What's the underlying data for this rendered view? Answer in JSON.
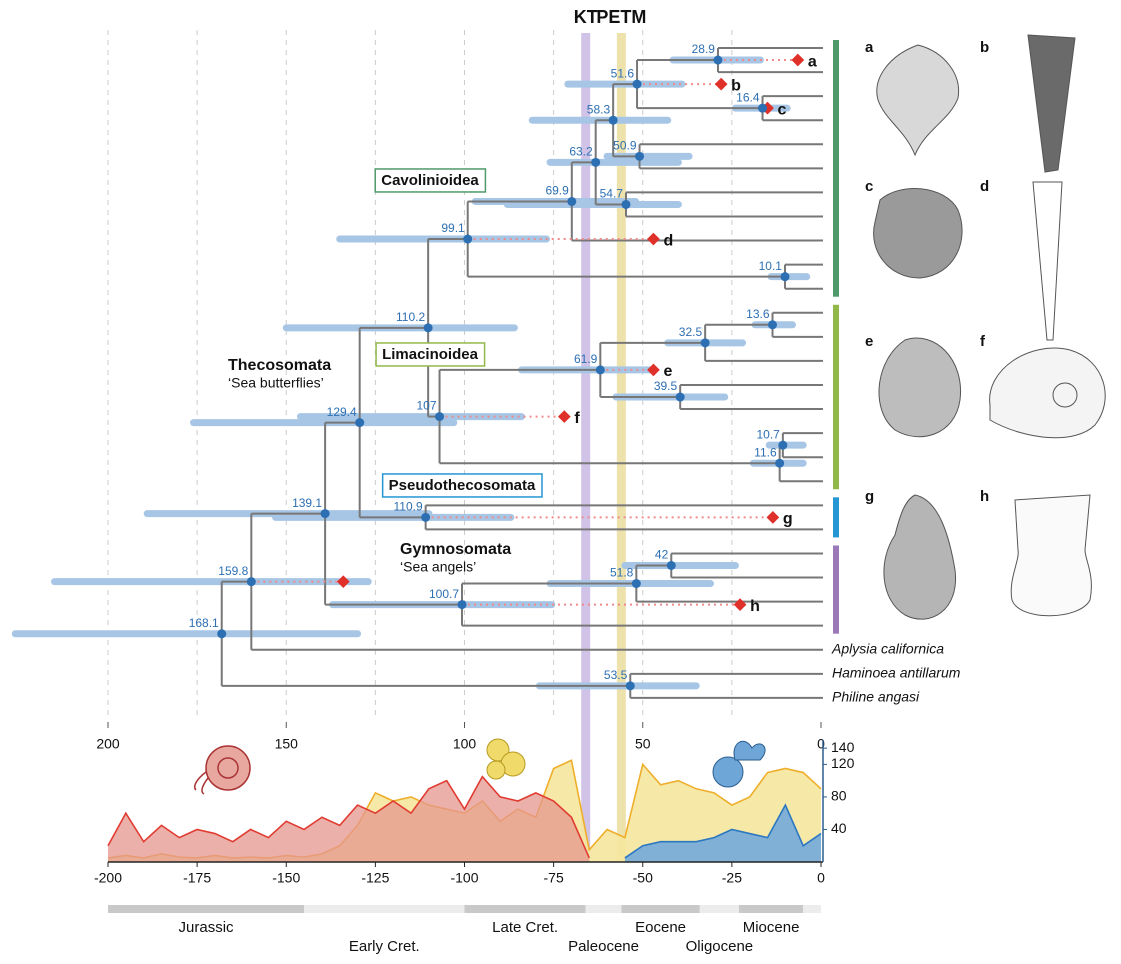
{
  "chart_data": [
    {
      "type": "tree",
      "xlim": [
        200,
        0
      ],
      "xticks": [
        200,
        150,
        100,
        50,
        0
      ],
      "grid_lines": [
        200,
        175,
        150,
        125,
        100,
        75,
        50,
        25
      ],
      "events": [
        {
          "label": "KT",
          "age": 66,
          "color": "#c9b8e3"
        },
        {
          "label": "PETM",
          "age": 56,
          "color": "#eadc9e"
        }
      ],
      "tree": {
        "age": 168.1,
        "ci": [
          226,
          130
        ],
        "children": [
          {
            "age": 159.8,
            "ci": [
              215,
              127
            ],
            "fossil": {
              "age": 134
            },
            "children": [
              {
                "age": 139.1,
                "ci": [
                  189,
                  110
                ],
                "children": [
                  {
                    "age": 129.4,
                    "ci": [
                      176,
                      103
                    ],
                    "children": [
                      {
                        "age": 110.2,
                        "ci": [
                          150,
                          86
                        ],
                        "children": [
                          {
                            "age": 99.1,
                            "ci": [
                              135,
                              77
                            ],
                            "fossil": {
                              "label": "d",
                              "age": 47
                            },
                            "children": [
                              {
                                "age": 69.9,
                                "ci": [
                                  97,
                                  52
                                ],
                                "children": [
                                  {
                                    "age": 63.2,
                                    "ci": [
                                      76,
                                      40
                                    ],
                                    "children": [
                                      {
                                        "age": 58.3,
                                        "ci": [
                                          81,
                                          43
                                        ],
                                        "children": [
                                          {
                                            "age": 51.6,
                                            "ci": [
                                              71,
                                              39
                                            ],
                                            "fossil": {
                                              "label": "b",
                                              "age": 28
                                            },
                                            "children": [
                                              {
                                                "age": 28.9,
                                                "ci": [
                                                  41.5,
                                                  17
                                                ],
                                                "fossil": {
                                                  "label": "a",
                                                  "age": 6.5
                                                },
                                                "children": [
                                                  null,
                                                  null
                                                ]
                                              },
                                              {
                                                "age": 16.4,
                                                "ci": [
                                                  24,
                                                  9.5
                                                ],
                                                "fossil": {
                                                  "label": "c",
                                                  "age": 15
                                                },
                                                "children": [
                                                  null,
                                                  null
                                                ]
                                              }
                                            ]
                                          },
                                          {
                                            "age": 50.9,
                                            "ci": [
                                              60,
                                              37
                                            ],
                                            "children": [
                                              null,
                                              null
                                            ]
                                          }
                                        ]
                                      },
                                      {
                                        "age": 54.7,
                                        "ci": [
                                          88,
                                          40
                                        ],
                                        "children": [
                                          null,
                                          null
                                        ]
                                      }
                                    ]
                                  },
                                  null
                                ]
                              },
                              {
                                "age": 10.1,
                                "ci": [
                                  14,
                                  4
                                ],
                                "children": [
                                  null,
                                  null
                                ]
                              }
                            ]
                          },
                          {
                            "age": 107,
                            "ci": [
                              146,
                              84
                            ],
                            "fossil": {
                              "label": "f",
                              "age": 72
                            },
                            "children": [
                              {
                                "age": 61.9,
                                "ci": [
                                  84,
                                  47
                                ],
                                "fossil": {
                                  "label": "e",
                                  "age": 47
                                },
                                "children": [
                                  {
                                    "age": 32.5,
                                    "ci": [
                                      43,
                                      22
                                    ],
                                    "children": [
                                      {
                                        "age": 13.6,
                                        "ci": [
                                          18.5,
                                          8
                                        ],
                                        "children": [
                                          null,
                                          null
                                        ]
                                      },
                                      null
                                    ]
                                  },
                                  {
                                    "age": 39.5,
                                    "ci": [
                                      57.5,
                                      27
                                    ],
                                    "children": [
                                      null,
                                      null
                                    ]
                                  }
                                ]
                              },
                              {
                                "age": 11.6,
                                "ci": [
                                  19,
                                  5
                                ],
                                "children": [
                                  {
                                    "age": 10.7,
                                    "ci": [
                                      14.5,
                                      5
                                    ],
                                    "children": [
                                      null,
                                      null
                                    ]
                                  },
                                  null
                                ]
                              }
                            ]
                          }
                        ]
                      },
                      {
                        "age": 110.9,
                        "ci": [
                          153,
                          87
                        ],
                        "fossil": {
                          "label": "g",
                          "age": 13.5
                        },
                        "children": [
                          null,
                          null
                        ]
                      }
                    ]
                  },
                  {
                    "age": 100.7,
                    "ci": [
                      137,
                      75.5
                    ],
                    "fossil": {
                      "label": "h",
                      "age": 22.7
                    },
                    "children": [
                      {
                        "age": 51.8,
                        "ci": [
                          76,
                          31
                        ],
                        "children": [
                          {
                            "age": 42,
                            "ci": [
                              55,
                              24
                            ],
                            "children": [
                              null,
                              null
                            ]
                          },
                          null
                        ]
                      },
                      null
                    ]
                  }
                ]
              },
              {
                "name": "Aplysia californica"
              }
            ]
          },
          {
            "age": 53.5,
            "ci": [
              79,
              35
            ],
            "children": [
              {
                "name": "Haminoea antillarum"
              },
              {
                "name": "Philine angasi"
              }
            ]
          }
        ]
      },
      "clades": [
        {
          "name": "Cavolinioidea",
          "color": "#4e9a6a",
          "tips": [
            0,
            10
          ],
          "boxed": true
        },
        {
          "name": "Limacinoidea",
          "color": "#93b84a",
          "tips": [
            11,
            18
          ],
          "boxed": true
        },
        {
          "name": "Pseudothecosomata",
          "color": "#2496d4",
          "tips": [
            19,
            20
          ],
          "boxed": true
        },
        {
          "name": "Thecosomata",
          "common": "‘Sea butterflies’",
          "boxed": false
        },
        {
          "name": "Gymnosomata",
          "common": "‘Sea angels’",
          "color": "#9b78b8",
          "tips": [
            21,
            24
          ],
          "boxed": false
        }
      ],
      "panels": [
        "a",
        "b",
        "c",
        "d",
        "e",
        "f",
        "g",
        "h"
      ]
    },
    {
      "type": "area",
      "x": [
        -200,
        -195,
        -190,
        -185,
        -180,
        -175,
        -170,
        -165,
        -160,
        -155,
        -150,
        -145,
        -140,
        -135,
        -130,
        -125,
        -120,
        -115,
        -110,
        -105,
        -100,
        -95,
        -90,
        -85,
        -80,
        -75,
        -70,
        -65,
        -60,
        -55,
        -50,
        -45,
        -40,
        -35,
        -30,
        -25,
        -20,
        -15,
        -10,
        -5,
        0
      ],
      "xlim": [
        -200,
        0
      ],
      "xticks": [
        -200,
        -175,
        -150,
        -125,
        -100,
        -75,
        -50,
        -25,
        0
      ],
      "ylim": [
        0,
        150
      ],
      "yticks": [
        40,
        80,
        120,
        140
      ],
      "series": [
        {
          "color": "#efae2a",
          "fill": "#f5e79e",
          "values": [
            5,
            8,
            5,
            10,
            6,
            5,
            8,
            5,
            6,
            5,
            8,
            6,
            10,
            20,
            45,
            85,
            75,
            80,
            70,
            65,
            60,
            75,
            50,
            65,
            55,
            115,
            125,
            15,
            40,
            30,
            120,
            95,
            100,
            90,
            85,
            70,
            80,
            110,
            115,
            110,
            90
          ]
        },
        {
          "color": "#e03c31",
          "fill": "#e6958f",
          "values": [
            20,
            60,
            25,
            45,
            30,
            40,
            35,
            25,
            40,
            30,
            50,
            40,
            55,
            45,
            70,
            60,
            75,
            60,
            90,
            100,
            65,
            105,
            80,
            75,
            85,
            75,
            55,
            5,
            null,
            null,
            null,
            null,
            null,
            null,
            null,
            null,
            null,
            null,
            null,
            null,
            null
          ]
        },
        {
          "color": "#2c78c0",
          "fill": "#74aadb",
          "values": [
            null,
            null,
            null,
            null,
            null,
            null,
            null,
            null,
            null,
            null,
            null,
            null,
            null,
            null,
            null,
            null,
            null,
            null,
            null,
            null,
            null,
            null,
            null,
            null,
            null,
            null,
            null,
            null,
            null,
            5,
            20,
            25,
            25,
            25,
            30,
            40,
            35,
            30,
            70,
            20,
            35
          ]
        }
      ],
      "periods": [
        {
          "name": "Jurassic",
          "start": -200,
          "end": -145
        },
        {
          "name": "Early Cret.",
          "start": -145,
          "end": -100
        },
        {
          "name": "Late Cret.",
          "start": -100,
          "end": -66
        },
        {
          "name": "Paleocene",
          "start": -66,
          "end": -56
        },
        {
          "name": "Eocene",
          "start": -56,
          "end": -34
        },
        {
          "name": "Oligocene",
          "start": -34,
          "end": -23
        },
        {
          "name": "Miocene",
          "start": -23,
          "end": -5
        },
        {
          "start": -5,
          "end": 0
        }
      ]
    }
  ]
}
